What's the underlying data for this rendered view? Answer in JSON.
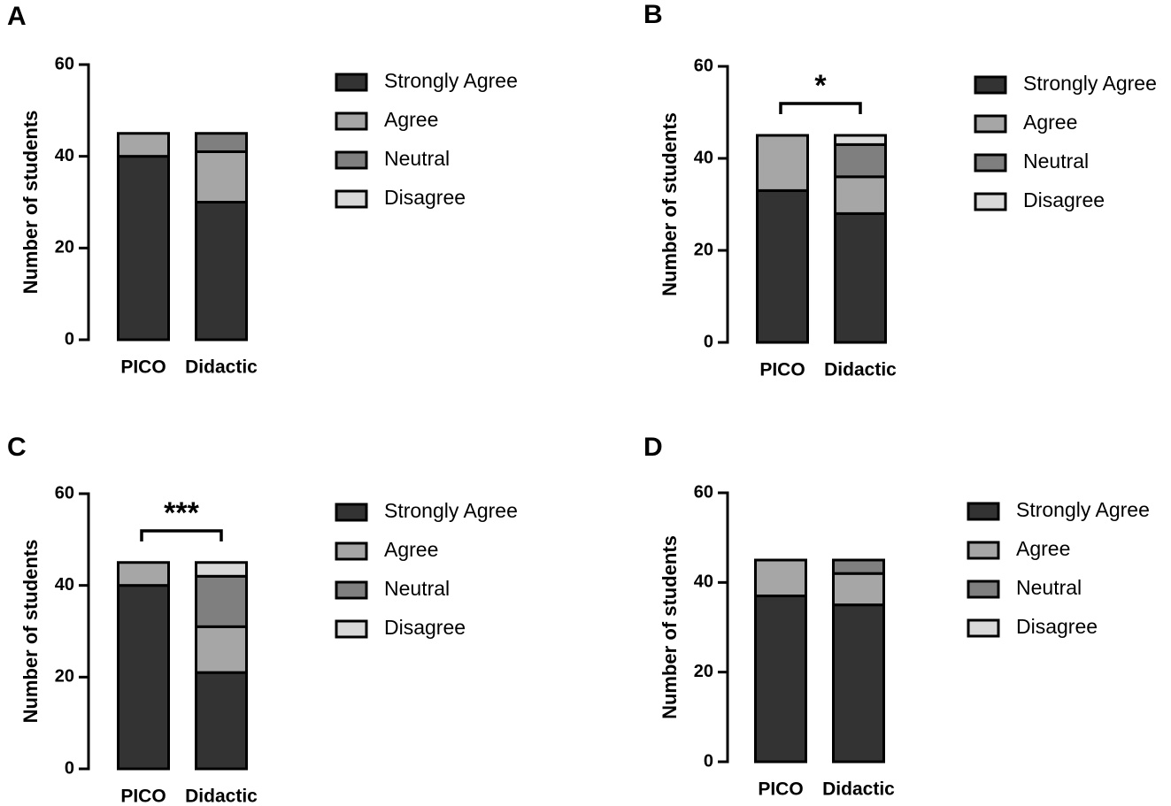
{
  "chart_data": [
    {
      "type": "bar",
      "stacked": true,
      "panel_label": "A",
      "y_label": "Number of students",
      "categories": [
        "PICO",
        "Didactic"
      ],
      "series": [
        {
          "name": "Strongly Agree",
          "color": "#333333",
          "values": [
            40,
            30
          ]
        },
        {
          "name": "Agree",
          "color": "#a6a6a6",
          "values": [
            5,
            11
          ]
        },
        {
          "name": "Neutral",
          "color": "#7f7f7f",
          "values": [
            0,
            4
          ]
        },
        {
          "name": "Disagree",
          "color": "#d9d9d9",
          "values": [
            0,
            0
          ]
        }
      ],
      "ylim": [
        0,
        60
      ],
      "yticks": [
        0,
        20,
        40,
        60
      ]
    },
    {
      "type": "bar",
      "stacked": true,
      "panel_label": "B",
      "y_label": "Number of students",
      "categories": [
        "PICO",
        "Didactic"
      ],
      "series": [
        {
          "name": "Strongly Agree",
          "color": "#333333",
          "values": [
            33,
            28
          ]
        },
        {
          "name": "Agree",
          "color": "#a6a6a6",
          "values": [
            12,
            8
          ]
        },
        {
          "name": "Neutral",
          "color": "#7f7f7f",
          "values": [
            0,
            7
          ]
        },
        {
          "name": "Disagree",
          "color": "#d9d9d9",
          "values": [
            0,
            2
          ]
        }
      ],
      "ylim": [
        0,
        60
      ],
      "yticks": [
        0,
        20,
        40,
        60
      ],
      "significance": "*"
    },
    {
      "type": "bar",
      "stacked": true,
      "panel_label": "C",
      "y_label": "Number of students",
      "categories": [
        "PICO",
        "Didactic"
      ],
      "series": [
        {
          "name": "Strongly Agree",
          "color": "#333333",
          "values": [
            40,
            21
          ]
        },
        {
          "name": "Agree",
          "color": "#a6a6a6",
          "values": [
            5,
            10
          ]
        },
        {
          "name": "Neutral",
          "color": "#7f7f7f",
          "values": [
            0,
            11
          ]
        },
        {
          "name": "Disagree",
          "color": "#d9d9d9",
          "values": [
            0,
            3
          ]
        }
      ],
      "ylim": [
        0,
        60
      ],
      "yticks": [
        0,
        20,
        40,
        60
      ],
      "significance": "***"
    },
    {
      "type": "bar",
      "stacked": true,
      "panel_label": "D",
      "y_label": "Number of students",
      "categories": [
        "PICO",
        "Didactic"
      ],
      "series": [
        {
          "name": "Strongly Agree",
          "color": "#333333",
          "values": [
            37,
            35
          ]
        },
        {
          "name": "Agree",
          "color": "#a6a6a6",
          "values": [
            8,
            7
          ]
        },
        {
          "name": "Neutral",
          "color": "#7f7f7f",
          "values": [
            0,
            3
          ]
        },
        {
          "name": "Disagree",
          "color": "#d9d9d9",
          "values": [
            0,
            0
          ]
        }
      ],
      "ylim": [
        0,
        60
      ],
      "yticks": [
        0,
        20,
        40,
        60
      ]
    }
  ]
}
